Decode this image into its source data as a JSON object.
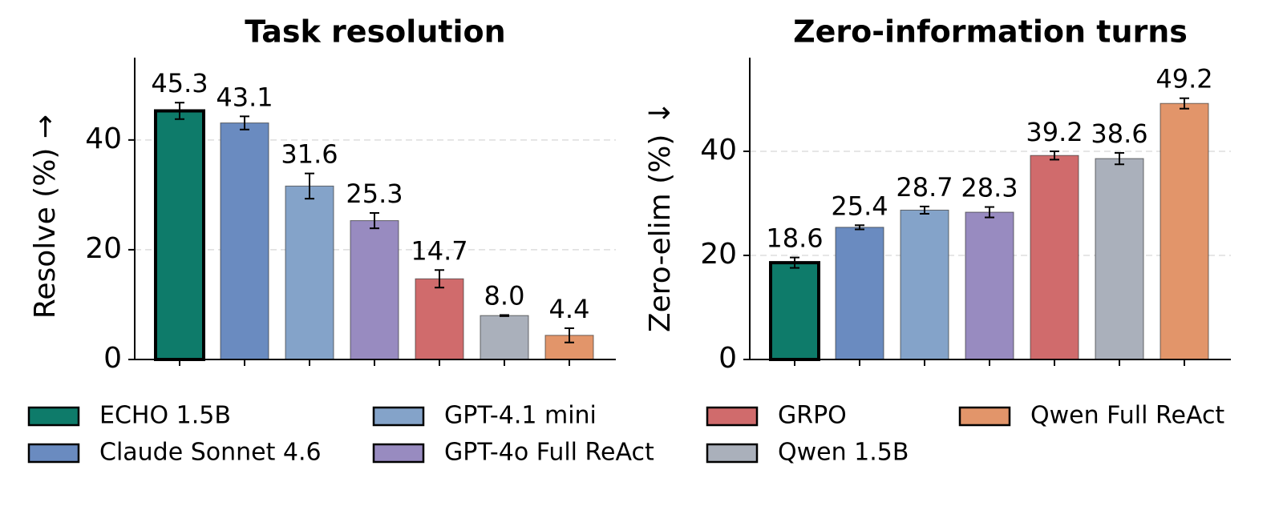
{
  "chart_data": [
    {
      "type": "bar",
      "title": "Task resolution",
      "ylabel": "Resolve (%) →",
      "values": [
        45.3,
        43.1,
        31.6,
        25.3,
        14.7,
        8.0,
        4.4
      ],
      "value_labels": [
        "45.3",
        "43.1",
        "31.6",
        "25.3",
        "14.7",
        "8.0",
        "4.4"
      ],
      "errors": [
        1.5,
        1.2,
        2.3,
        1.4,
        1.6,
        0.1,
        1.3
      ],
      "ylim": [
        0,
        55
      ],
      "yticks": [
        0,
        20,
        40
      ],
      "grid": true,
      "highlight": 0
    },
    {
      "type": "bar",
      "title": "Zero-information turns",
      "ylabel": "Zero-elim (%) ↓",
      "values": [
        18.6,
        25.4,
        28.7,
        28.3,
        39.2,
        38.6,
        49.2
      ],
      "value_labels": [
        "18.6",
        "25.4",
        "28.7",
        "28.3",
        "39.2",
        "38.6",
        "49.2"
      ],
      "errors": [
        1.0,
        0.4,
        0.7,
        1.0,
        0.8,
        1.1,
        1.0
      ],
      "ylim": [
        0,
        58
      ],
      "yticks": [
        0,
        20,
        40
      ],
      "grid": true,
      "highlight": 0
    }
  ],
  "legend": {
    "columns": 4,
    "entries": [
      {
        "name": "ECHO 1.5B",
        "color": "#0e7b6a"
      },
      {
        "name": "Claude Sonnet 4.6",
        "color": "#6a8bc0"
      },
      {
        "name": "GPT-4.1 mini",
        "color": "#84a3c9"
      },
      {
        "name": "GPT-4o Full ReAct",
        "color": "#988bc0"
      },
      {
        "name": "GRPO",
        "color": "#d06b6c"
      },
      {
        "name": "Qwen 1.5B",
        "color": "#aab0bb"
      },
      {
        "name": "Qwen Full ReAct",
        "color": "#e2956a"
      }
    ]
  }
}
